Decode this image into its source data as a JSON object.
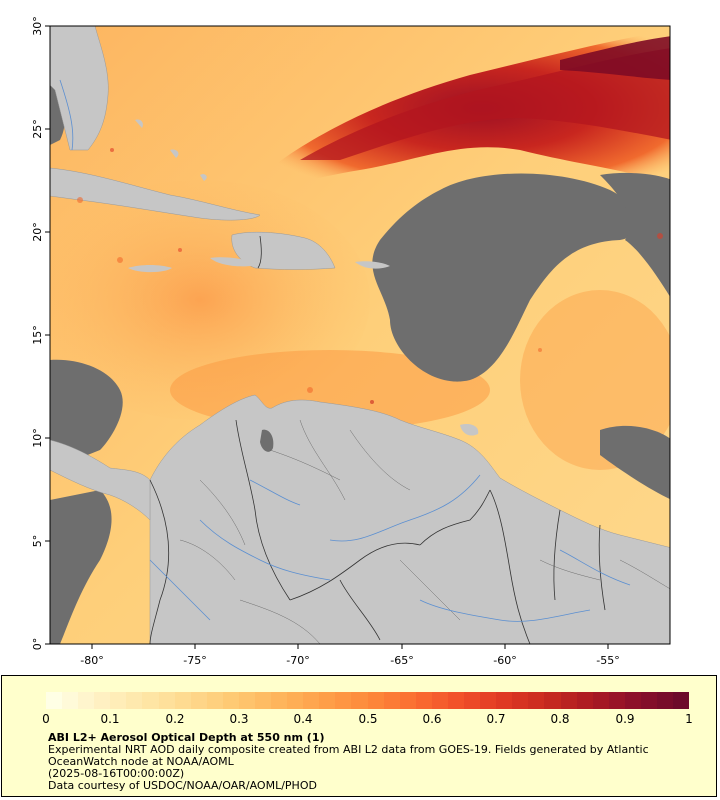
{
  "map": {
    "lat_ticks": [
      "0°",
      "5°",
      "10°",
      "15°",
      "20°",
      "25°",
      "30°"
    ],
    "lon_ticks": [
      "-80°",
      "-75°",
      "-70°",
      "-65°",
      "-60°",
      "-55°"
    ],
    "colors": {
      "land": "#c6c6c6",
      "no_data": "#6e6e6e",
      "rivers": "#5b8fd1",
      "borders": "#333333"
    }
  },
  "legend": {
    "tick_labels": [
      "0",
      "0.1",
      "0.2",
      "0.3",
      "0.4",
      "0.5",
      "0.6",
      "0.7",
      "0.8",
      "0.9",
      "1"
    ],
    "title": "ABI L2+ Aerosol Optical Depth at 550 nm (1)",
    "description": "Experimental NRT AOD daily composite created from ABI L2 data from GOES-19. Fields generated by Atlantic\nOceanWatch node at NOAA/AOML",
    "date": "(2025-08-16T00:00:00Z)",
    "credit": "Data courtesy of USDOC/NOAA/OAR/AOML/PHOD",
    "colorbar_colors": [
      "#ffffe5",
      "#fff1c4",
      "#fee7a8",
      "#fed98e",
      "#fec973",
      "#feb65c",
      "#fea04a",
      "#fd8a3b",
      "#fb6f31",
      "#f2512a",
      "#e03a24",
      "#c82a20",
      "#aa1a22",
      "#8b0f2a",
      "#6d0a2a"
    ]
  }
}
